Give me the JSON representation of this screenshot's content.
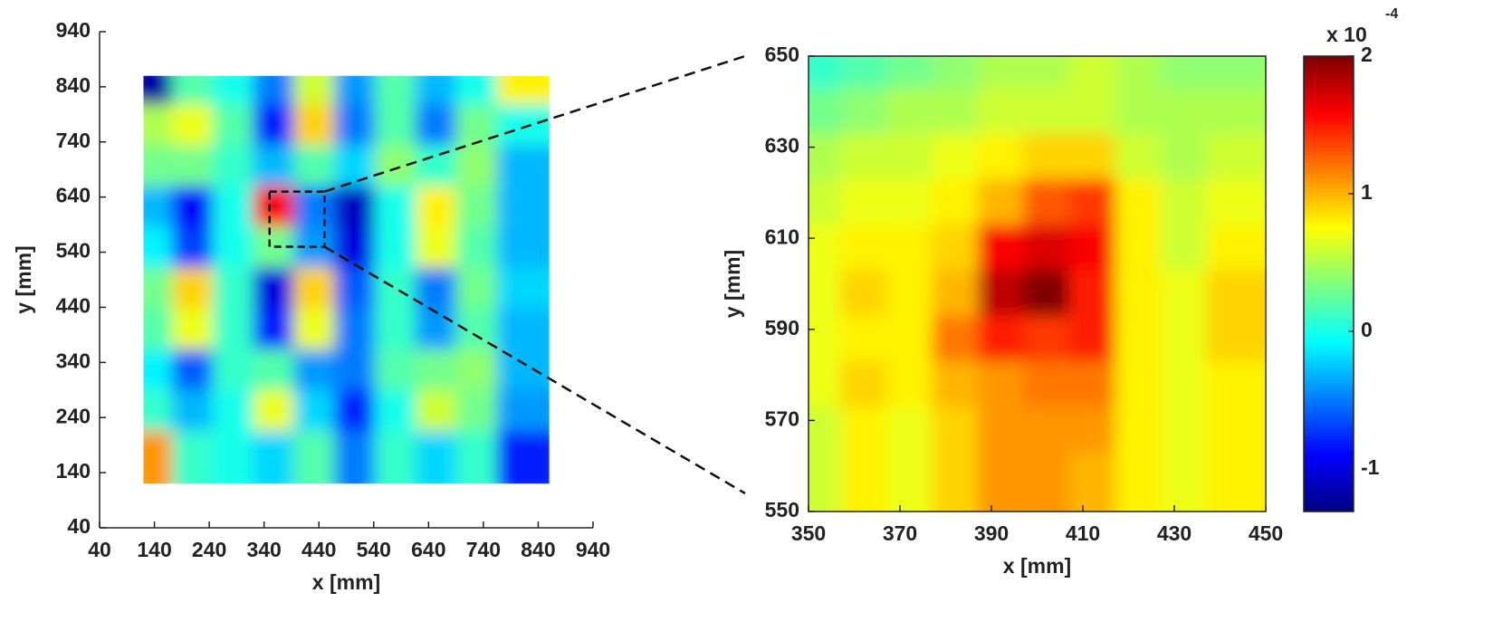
{
  "chart_data": [
    {
      "type": "heatmap",
      "xlabel": "x [mm]",
      "ylabel": "y [mm]",
      "xlim": [
        40,
        940
      ],
      "ylim": [
        40,
        940
      ],
      "xticks": [
        40,
        140,
        240,
        340,
        440,
        540,
        640,
        740,
        840,
        940
      ],
      "yticks": [
        40,
        140,
        240,
        340,
        440,
        540,
        640,
        740,
        840,
        940
      ],
      "clim": [
        -1.31,
        2
      ],
      "colormap": "jet",
      "x": [
        157,
        231,
        305,
        379,
        453,
        527,
        601,
        675,
        749,
        823
      ],
      "y": [
        823,
        749,
        675,
        601,
        527,
        453,
        379,
        305,
        231,
        157
      ],
      "values": [
        [
          -1.2,
          0.2,
          0,
          -0.5,
          0.6,
          -0.4,
          0.2,
          -0.3,
          0,
          0.8
        ],
        [
          0.5,
          0.7,
          0.2,
          -0.8,
          0.9,
          -0.5,
          0.2,
          -0.5,
          0.3,
          0
        ],
        [
          0.3,
          0.3,
          0.1,
          -0.3,
          0.2,
          -0.2,
          0.4,
          0.1,
          0.4,
          -0.3
        ],
        [
          -0.3,
          -0.9,
          0,
          1.6,
          -0.5,
          -1.1,
          0,
          0.8,
          0.3,
          -0.3
        ],
        [
          -0.1,
          -0.7,
          0,
          0.3,
          -0.4,
          -1.0,
          0,
          0.7,
          0.2,
          -0.3
        ],
        [
          0.3,
          0.9,
          0.1,
          -1.0,
          0.9,
          -0.6,
          0.1,
          -0.5,
          0.3,
          -0.2
        ],
        [
          0.2,
          0.7,
          0.1,
          -0.8,
          0.7,
          -0.5,
          0.1,
          -0.4,
          0.2,
          -0.3
        ],
        [
          -0.1,
          -0.6,
          0.1,
          0.2,
          -0.4,
          -0.5,
          0.2,
          0.3,
          0.4,
          -0.3
        ],
        [
          0.1,
          -0.3,
          0,
          0.7,
          -0.2,
          -0.8,
          0,
          0.6,
          0.3,
          -0.4
        ],
        [
          1.1,
          0.1,
          0,
          -0.2,
          0.2,
          -0.5,
          0.1,
          -0.2,
          0.1,
          -0.8
        ]
      ]
    },
    {
      "type": "heatmap",
      "xlabel": "x [mm]",
      "ylabel": "y [mm]",
      "xlim": [
        350,
        450
      ],
      "ylim": [
        550,
        650
      ],
      "xticks": [
        350,
        370,
        390,
        410,
        430,
        450
      ],
      "yticks": [
        550,
        570,
        590,
        610,
        630,
        650
      ],
      "clim": [
        -1.31,
        2
      ],
      "colormap": "jet",
      "colorbar_ticks": [
        -1,
        0,
        1,
        2
      ],
      "colorbar_label": "x 10",
      "colorbar_exponent": "-4",
      "x": [
        355,
        365,
        375,
        385,
        395,
        405,
        415,
        425,
        435,
        445
      ],
      "y": [
        645,
        635,
        625,
        615,
        605,
        595,
        585,
        575,
        565,
        555
      ],
      "values": [
        [
          0.1,
          0.2,
          0.3,
          0.4,
          0.5,
          0.5,
          0.6,
          0.5,
          0.4,
          0.4
        ],
        [
          0.3,
          0.4,
          0.5,
          0.5,
          0.6,
          0.6,
          0.6,
          0.5,
          0.5,
          0.5
        ],
        [
          0.5,
          0.6,
          0.6,
          0.7,
          0.8,
          0.9,
          0.9,
          0.6,
          0.5,
          0.6
        ],
        [
          0.6,
          0.7,
          0.7,
          0.8,
          1.0,
          1.3,
          1.4,
          0.8,
          0.6,
          0.7
        ],
        [
          0.7,
          0.8,
          0.8,
          0.9,
          1.6,
          1.7,
          1.6,
          0.8,
          0.6,
          0.8
        ],
        [
          0.7,
          0.9,
          0.8,
          1.0,
          1.8,
          2.0,
          1.5,
          0.8,
          0.7,
          0.9
        ],
        [
          0.7,
          0.8,
          0.8,
          1.2,
          1.5,
          1.4,
          1.5,
          0.8,
          0.7,
          0.9
        ],
        [
          0.7,
          0.9,
          0.8,
          1.0,
          1.1,
          1.2,
          1.2,
          0.8,
          0.7,
          0.8
        ],
        [
          0.6,
          0.8,
          0.7,
          0.9,
          1.1,
          1.1,
          1.1,
          0.8,
          0.7,
          0.8
        ],
        [
          0.6,
          0.8,
          0.7,
          0.9,
          1.1,
          1.1,
          1.0,
          0.8,
          0.7,
          0.8
        ]
      ]
    }
  ]
}
